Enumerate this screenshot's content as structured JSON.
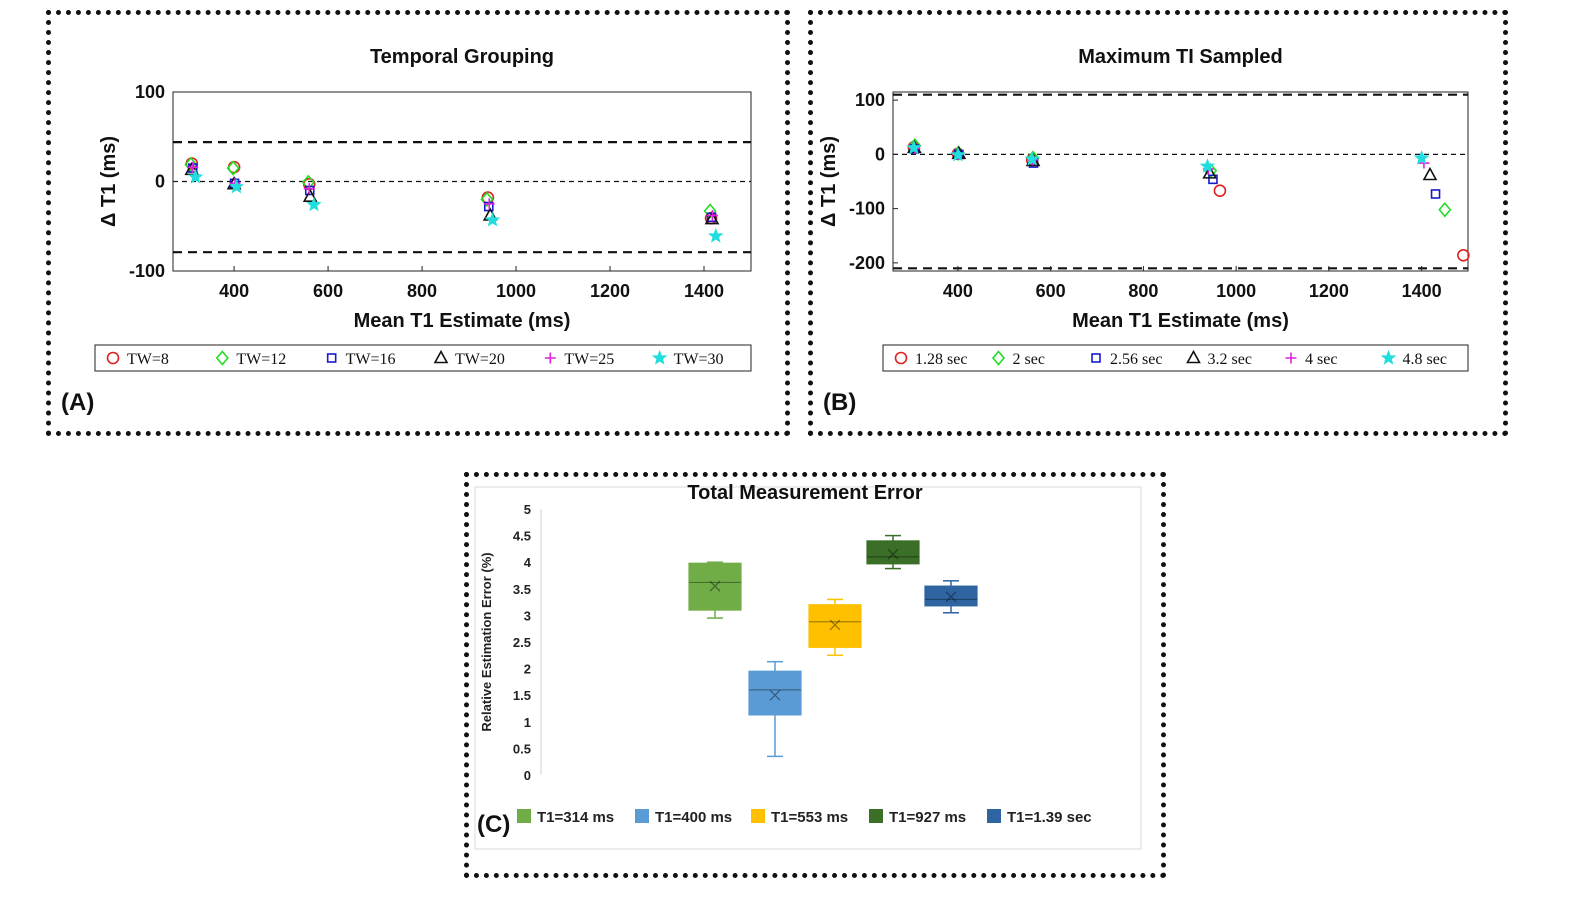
{
  "chart_data": [
    {
      "id": "A",
      "type": "scatter",
      "title": "Temporal Grouping",
      "xlabel": "Mean T1 Estimate (ms)",
      "ylabel": "Δ T1 (ms)",
      "xlim": [
        270,
        1500
      ],
      "ylim": [
        -100,
        100
      ],
      "xticks": [
        400,
        600,
        800,
        1000,
        1200,
        1400
      ],
      "yticks": [
        -100,
        0,
        100
      ],
      "reference_lines": [
        44,
        0,
        -79
      ],
      "panel_label": "(A)",
      "legend_position": "bottom-outside",
      "series": [
        {
          "name": "TW=8",
          "marker": "circle",
          "color": "#e02020",
          "x": [
            310,
            400,
            560,
            940,
            1415
          ],
          "y": [
            20,
            16,
            -3,
            -18,
            -41
          ]
        },
        {
          "name": "TW=12",
          "marker": "diamond",
          "color": "#22dd22",
          "x": [
            308,
            398,
            558,
            938,
            1413
          ],
          "y": [
            19,
            15,
            -1,
            -20,
            -33
          ]
        },
        {
          "name": "TW=16",
          "marker": "square",
          "color": "#1a1acc",
          "x": [
            312,
            401,
            561,
            942,
            1416
          ],
          "y": [
            15,
            -2,
            -10,
            -28,
            -40
          ]
        },
        {
          "name": "TW=20",
          "marker": "triangle",
          "color": "#111111",
          "x": [
            310,
            400,
            562,
            945,
            1417
          ],
          "y": [
            13,
            -3,
            -17,
            -38,
            -42
          ]
        },
        {
          "name": "TW=25",
          "marker": "plus",
          "color": "#dd22dd",
          "x": [
            312,
            402,
            560,
            943,
            1418
          ],
          "y": [
            16,
            -2,
            -8,
            -25,
            -38
          ]
        },
        {
          "name": "TW=30",
          "marker": "star",
          "color": "#22dddd",
          "x": [
            318,
            405,
            570,
            950,
            1425
          ],
          "y": [
            5,
            -6,
            -26,
            -43,
            -61
          ]
        }
      ]
    },
    {
      "id": "B",
      "type": "scatter",
      "title": "Maximum TI Sampled",
      "xlabel": "Mean T1 Estimate (ms)",
      "ylabel": "Δ T1 (ms)",
      "xlim": [
        260,
        1500
      ],
      "ylim": [
        -215,
        115
      ],
      "xticks": [
        400,
        600,
        800,
        1000,
        1200,
        1400
      ],
      "yticks": [
        -200,
        -100,
        0,
        100
      ],
      "reference_lines": [
        110,
        0,
        -210
      ],
      "panel_label": "(B)",
      "legend_position": "bottom-outside",
      "series": [
        {
          "name": "1.28 sec",
          "marker": "circle",
          "color": "#e02020",
          "x": [
            305,
            400,
            560,
            965,
            1490
          ],
          "y": [
            13,
            1,
            -10,
            -67,
            -186
          ]
        },
        {
          "name": "2 sec",
          "marker": "diamond",
          "color": "#22dd22",
          "x": [
            307,
            401,
            562,
            945,
            1450
          ],
          "y": [
            16,
            2,
            -7,
            -30,
            -102
          ]
        },
        {
          "name": "2.56 sec",
          "marker": "square",
          "color": "#1a1acc",
          "x": [
            306,
            402,
            563,
            950,
            1430
          ],
          "y": [
            10,
            0,
            -16,
            -46,
            -73
          ]
        },
        {
          "name": "3.2 sec",
          "marker": "triangle",
          "color": "#111111",
          "x": [
            306,
            402,
            562,
            943,
            1418
          ],
          "y": [
            12,
            1,
            -12,
            -35,
            -38
          ]
        },
        {
          "name": "4 sec",
          "marker": "plus",
          "color": "#dd22dd",
          "x": [
            307,
            401,
            561,
            940,
            1405
          ],
          "y": [
            11,
            0,
            -10,
            -27,
            -16
          ]
        },
        {
          "name": "4.8 sec",
          "marker": "star",
          "color": "#22dddd",
          "x": [
            305,
            400,
            560,
            938,
            1400
          ],
          "y": [
            12,
            -1,
            -9,
            -22,
            -7
          ]
        }
      ]
    },
    {
      "id": "C",
      "type": "box",
      "title": "Total Measurement Error",
      "xlabel": "",
      "ylabel": "Relative Estimation Error (%)",
      "ylim": [
        0,
        5
      ],
      "yticks": [
        "0",
        "0.5",
        "1",
        "1.5",
        "2",
        "2.5",
        "3",
        "3.5",
        "4",
        "4.5",
        "5"
      ],
      "panel_label": "(C)",
      "legend_position": "bottom",
      "series": [
        {
          "name": "T1=314 ms",
          "color": "#70ad47",
          "min": 2.95,
          "q1": 3.1,
          "median": 3.62,
          "q3": 3.98,
          "max": 4.0,
          "mean": 3.55
        },
        {
          "name": "T1=400 ms",
          "color": "#5b9bd5",
          "min": 0.35,
          "q1": 1.13,
          "median": 1.6,
          "q3": 1.95,
          "max": 2.13,
          "mean": 1.5
        },
        {
          "name": "T1=553 ms",
          "color": "#ffc000",
          "min": 2.25,
          "q1": 2.4,
          "median": 2.88,
          "q3": 3.2,
          "max": 3.3,
          "mean": 2.82
        },
        {
          "name": "T1=927 ms",
          "color": "#3b6e27",
          "min": 3.88,
          "q1": 3.97,
          "median": 4.1,
          "q3": 4.4,
          "max": 4.5,
          "mean": 4.15
        },
        {
          "name": "T1=1.39 sec",
          "color": "#2e64a0",
          "min": 3.05,
          "q1": 3.18,
          "median": 3.3,
          "q3": 3.55,
          "max": 3.65,
          "mean": 3.35
        }
      ]
    }
  ]
}
